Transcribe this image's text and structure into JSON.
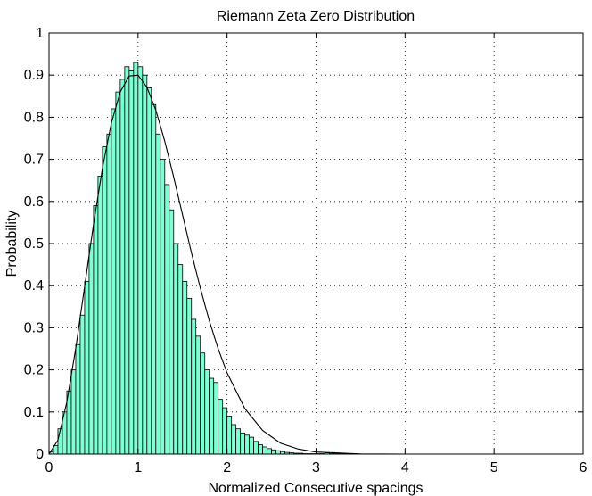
{
  "chart_data": {
    "type": "bar",
    "title": "Riemann Zeta Zero Distribution",
    "xlabel": "Normalized Consecutive spacings",
    "ylabel": "Probability",
    "xlim": [
      0,
      6
    ],
    "ylim": [
      0,
      1
    ],
    "xticks": [
      "0",
      "1",
      "2",
      "3",
      "4",
      "5",
      "6"
    ],
    "yticks": [
      "0",
      "0.1",
      "0.2",
      "0.3",
      "0.4",
      "0.5",
      "0.6",
      "0.7",
      "0.8",
      "0.9",
      "1"
    ],
    "grid": true,
    "bar_color": "#7fffd4",
    "bin_width": 0.05,
    "histogram": {
      "x": [
        0.025,
        0.075,
        0.125,
        0.175,
        0.225,
        0.275,
        0.325,
        0.375,
        0.425,
        0.475,
        0.525,
        0.575,
        0.625,
        0.675,
        0.725,
        0.775,
        0.825,
        0.875,
        0.925,
        0.975,
        1.025,
        1.075,
        1.125,
        1.175,
        1.225,
        1.275,
        1.325,
        1.375,
        1.425,
        1.475,
        1.525,
        1.575,
        1.625,
        1.675,
        1.725,
        1.775,
        1.825,
        1.875,
        1.925,
        1.975,
        2.025,
        2.075,
        2.125,
        2.175,
        2.225,
        2.275,
        2.325,
        2.375,
        2.425,
        2.475,
        2.525,
        2.575,
        2.625,
        2.675,
        2.725,
        2.775,
        2.825,
        2.875,
        2.925,
        2.975,
        3.025,
        3.075,
        3.125,
        3.175,
        3.225,
        3.275
      ],
      "y": [
        0.005,
        0.02,
        0.06,
        0.1,
        0.15,
        0.2,
        0.26,
        0.33,
        0.41,
        0.5,
        0.59,
        0.66,
        0.73,
        0.76,
        0.82,
        0.86,
        0.89,
        0.92,
        0.91,
        0.93,
        0.92,
        0.9,
        0.87,
        0.83,
        0.76,
        0.7,
        0.64,
        0.58,
        0.5,
        0.45,
        0.41,
        0.37,
        0.32,
        0.28,
        0.24,
        0.2,
        0.18,
        0.17,
        0.13,
        0.11,
        0.09,
        0.07,
        0.06,
        0.05,
        0.045,
        0.04,
        0.03,
        0.022,
        0.017,
        0.013,
        0.01,
        0.008,
        0.006,
        0.004,
        0.003,
        0.002,
        0.002,
        0.001,
        0.001,
        0.001,
        0.001,
        0.001,
        0.003,
        0.001,
        0.001,
        0.001
      ]
    },
    "curve": {
      "x": [
        0,
        0.1,
        0.2,
        0.3,
        0.4,
        0.5,
        0.6,
        0.7,
        0.8,
        0.9,
        1.0,
        1.1,
        1.2,
        1.3,
        1.4,
        1.5,
        1.6,
        1.7,
        1.8,
        1.9,
        2.0,
        2.2,
        2.4,
        2.6,
        2.8,
        3.0,
        3.5,
        4.0,
        5.0,
        6.0
      ],
      "y": [
        0,
        0.033,
        0.124,
        0.251,
        0.398,
        0.546,
        0.679,
        0.786,
        0.86,
        0.898,
        0.9,
        0.871,
        0.817,
        0.743,
        0.658,
        0.568,
        0.478,
        0.394,
        0.317,
        0.25,
        0.193,
        0.108,
        0.056,
        0.026,
        0.012,
        0.005,
        0.0004,
        2e-05,
        0,
        0
      ]
    }
  }
}
